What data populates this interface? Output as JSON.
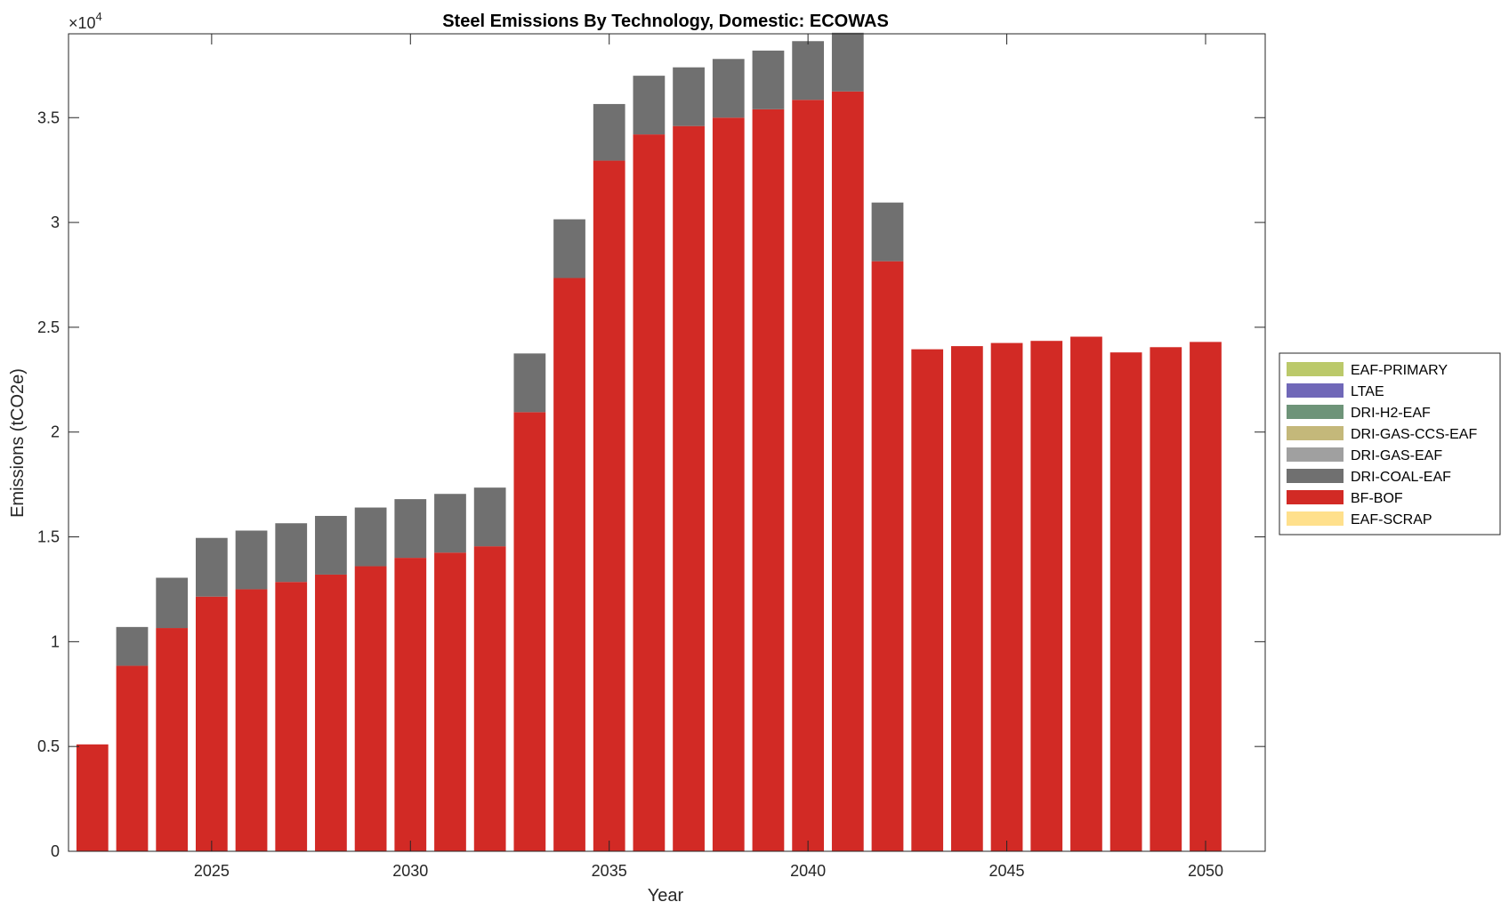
{
  "chart_data": {
    "type": "bar",
    "stacked": true,
    "title": "Steel Emissions By Technology, Domestic: ECOWAS",
    "xlabel": "Year",
    "ylabel": "Emissions (tCO2e)",
    "y_exponent_label": "×10",
    "y_exponent_power": "4",
    "xlim": [
      2021.4,
      2051.5
    ],
    "ylim": [
      0,
      39000
    ],
    "x_ticks": [
      2025,
      2030,
      2035,
      2040,
      2045,
      2050
    ],
    "x_tick_labels": [
      "2025",
      "2030",
      "2035",
      "2040",
      "2045",
      "2050"
    ],
    "y_ticks": [
      0,
      5000,
      10000,
      15000,
      20000,
      25000,
      30000,
      35000
    ],
    "y_tick_labels": [
      "0",
      "0.5",
      "1",
      "1.5",
      "2",
      "2.5",
      "3",
      "3.5"
    ],
    "categories": [
      2022,
      2023,
      2024,
      2025,
      2026,
      2027,
      2028,
      2029,
      2030,
      2031,
      2032,
      2033,
      2034,
      2035,
      2036,
      2037,
      2038,
      2039,
      2040,
      2041,
      2042,
      2043,
      2044,
      2045,
      2046,
      2047,
      2048,
      2049,
      2050
    ],
    "series": [
      {
        "name": "EAF-SCRAP",
        "color": "#FFE08C",
        "values": [
          0,
          0,
          0,
          0,
          0,
          0,
          0,
          0,
          0,
          0,
          0,
          0,
          0,
          0,
          0,
          0,
          0,
          0,
          0,
          0,
          0,
          0,
          0,
          0,
          0,
          0,
          0,
          0,
          0
        ]
      },
      {
        "name": "BF-BOF",
        "color": "#D22A25",
        "values": [
          5100,
          8850,
          10650,
          12150,
          12500,
          12850,
          13200,
          13600,
          14000,
          14250,
          14550,
          20950,
          27350,
          32950,
          34200,
          34600,
          35000,
          35400,
          35850,
          36250,
          28150,
          23950,
          24100,
          24250,
          24350,
          24550,
          23800,
          24050,
          24300
        ]
      },
      {
        "name": "DRI-COAL-EAF",
        "color": "#707070",
        "values": [
          0,
          1850,
          2400,
          2800,
          2800,
          2800,
          2800,
          2800,
          2800,
          2800,
          2800,
          2800,
          2800,
          2700,
          2800,
          2800,
          2800,
          2800,
          2800,
          2800,
          2800,
          0,
          0,
          0,
          0,
          0,
          0,
          0,
          0
        ]
      },
      {
        "name": "DRI-GAS-EAF",
        "color": "#A0A0A0",
        "values": [
          0,
          0,
          0,
          0,
          0,
          0,
          0,
          0,
          0,
          0,
          0,
          0,
          0,
          0,
          0,
          0,
          0,
          0,
          0,
          0,
          0,
          0,
          0,
          0,
          0,
          0,
          0,
          0,
          0
        ]
      },
      {
        "name": "DRI-GAS-CCS-EAF",
        "color": "#C4B87A",
        "values": [
          0,
          0,
          0,
          0,
          0,
          0,
          0,
          0,
          0,
          0,
          0,
          0,
          0,
          0,
          0,
          0,
          0,
          0,
          0,
          0,
          0,
          0,
          0,
          0,
          0,
          0,
          0,
          0,
          0
        ]
      },
      {
        "name": "DRI-H2-EAF",
        "color": "#6E9479",
        "values": [
          0,
          0,
          0,
          0,
          0,
          0,
          0,
          0,
          0,
          0,
          0,
          0,
          0,
          0,
          0,
          0,
          0,
          0,
          0,
          0,
          0,
          0,
          0,
          0,
          0,
          0,
          0,
          0,
          0
        ]
      },
      {
        "name": "LTAE",
        "color": "#7068B8",
        "values": [
          0,
          0,
          0,
          0,
          0,
          0,
          0,
          0,
          0,
          0,
          0,
          0,
          0,
          0,
          0,
          0,
          0,
          0,
          0,
          0,
          0,
          0,
          0,
          0,
          0,
          0,
          0,
          0,
          0
        ]
      },
      {
        "name": "EAF-PRIMARY",
        "color": "#BBC96A",
        "values": [
          0,
          0,
          0,
          0,
          0,
          0,
          0,
          0,
          0,
          0,
          0,
          0,
          0,
          0,
          0,
          0,
          0,
          0,
          0,
          0,
          0,
          0,
          0,
          0,
          0,
          0,
          0,
          0,
          0
        ]
      }
    ],
    "legend": {
      "placement": "right",
      "entries": [
        "EAF-PRIMARY",
        "LTAE",
        "DRI-H2-EAF",
        "DRI-GAS-CCS-EAF",
        "DRI-GAS-EAF",
        "DRI-COAL-EAF",
        "BF-BOF",
        "EAF-SCRAP"
      ]
    }
  }
}
